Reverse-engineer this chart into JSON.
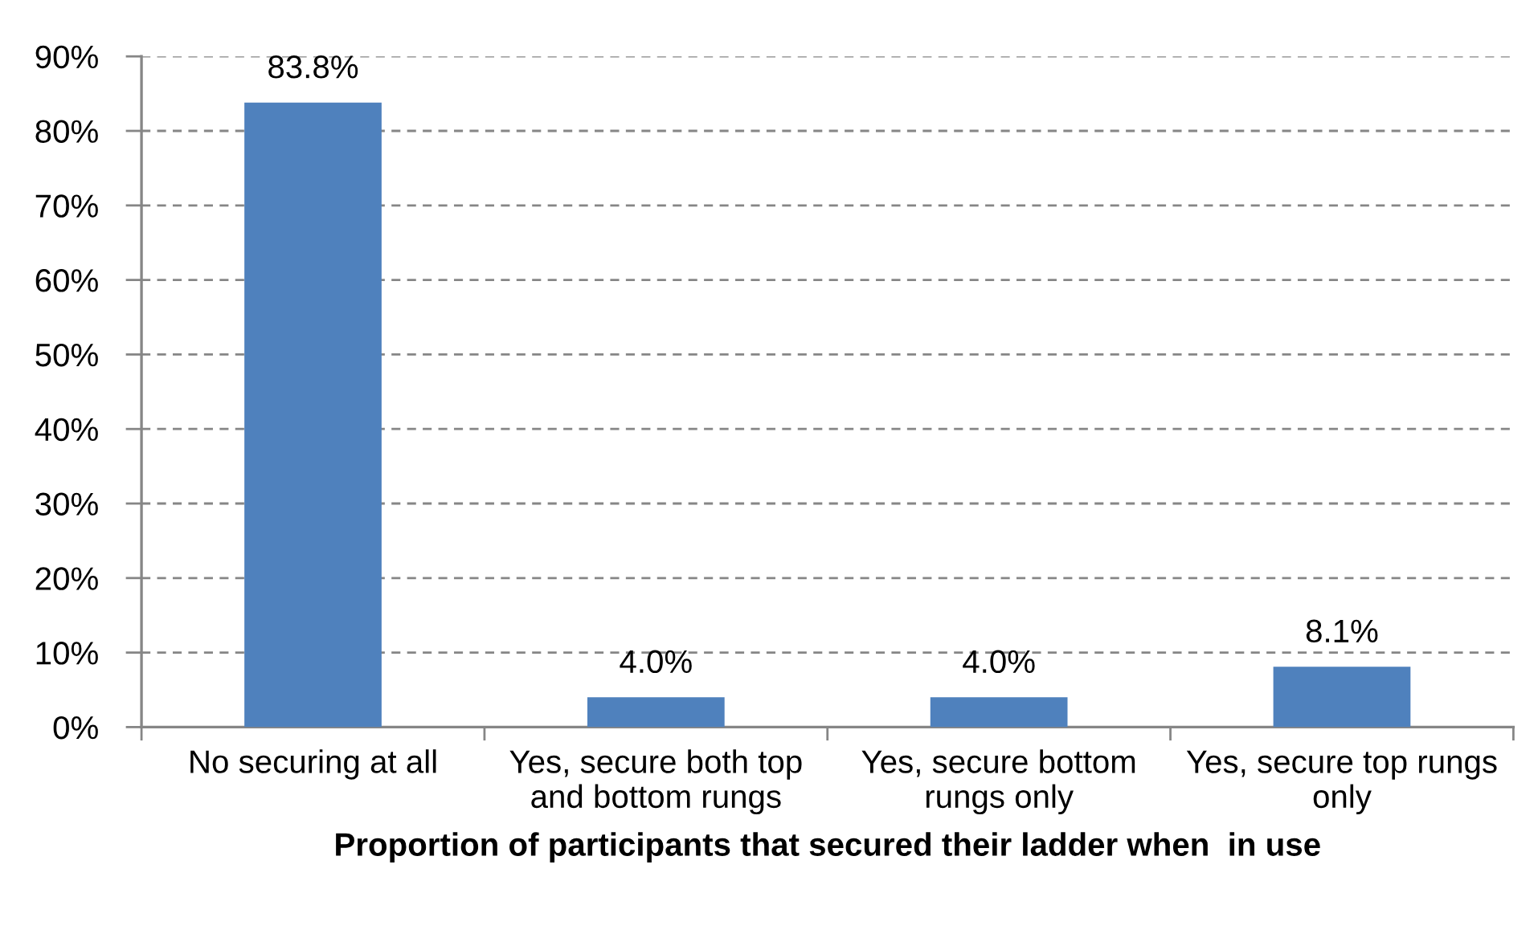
{
  "chart_data": {
    "type": "bar",
    "xlabel": "Proportion of participants that secured their ladder when  in use",
    "categories": [
      "No securing at all",
      "Yes, secure both top\nand bottom rungs",
      "Yes, secure bottom\nrungs only",
      "Yes, secure top rungs\nonly"
    ],
    "values": [
      83.8,
      4.0,
      4.0,
      8.1
    ],
    "color": "#4f81bd",
    "value_labels": [
      "83.8%",
      "4.0%",
      "4.0%",
      "8.1%"
    ],
    "ylim": [
      0,
      90
    ],
    "yticks": [
      {
        "value": 0,
        "label": "0%"
      },
      {
        "value": 10,
        "label": "10%"
      },
      {
        "value": 20,
        "label": "20%"
      },
      {
        "value": 30,
        "label": "30%"
      },
      {
        "value": 40,
        "label": "40%"
      },
      {
        "value": 50,
        "label": "50%"
      },
      {
        "value": 60,
        "label": "60%"
      },
      {
        "value": 70,
        "label": "70%"
      },
      {
        "value": 80,
        "label": "80%"
      },
      {
        "value": 90,
        "label": "90%"
      }
    ],
    "grid": "y",
    "line_style": "dashed",
    "legend": false
  }
}
